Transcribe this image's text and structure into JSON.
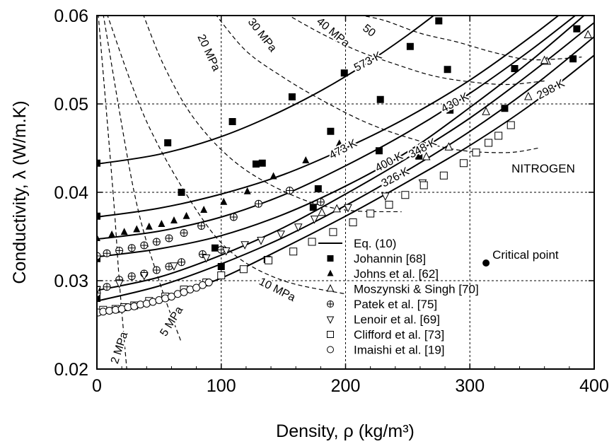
{
  "chart_data": {
    "type": "scatter",
    "xlabel": "Density, ρ  (kg/m³)",
    "ylabel": "Conductivity, λ  (W/m.K)",
    "xlim": [
      0,
      400
    ],
    "ylim": [
      0.02,
      0.06
    ],
    "x_ticks": [
      "0",
      "100",
      "200",
      "300",
      "400"
    ],
    "y_ticks": [
      "0.02",
      "0.03",
      "0.04",
      "0.05",
      "0.06"
    ],
    "grid": "dashed at major ticks",
    "legend_position": "lower-right",
    "substance_label": "NITROGEN",
    "critical_point": {
      "label": "Critical point",
      "x": 313,
      "y": 0.032
    },
    "isotherms": [
      {
        "label": "298 K",
        "x": [
          0,
          50,
          100,
          150,
          200,
          250,
          300,
          350,
          400
        ],
        "y": [
          0.0262,
          0.0278,
          0.0303,
          0.0337,
          0.0373,
          0.0412,
          0.0453,
          0.05,
          0.0555
        ]
      },
      {
        "label": "326 K",
        "x": [
          0,
          50,
          100,
          150,
          200,
          250,
          300,
          350,
          400
        ],
        "y": [
          0.0277,
          0.0294,
          0.0319,
          0.0349,
          0.0385,
          0.0425,
          0.0469,
          0.0519,
          0.0576
        ]
      },
      {
        "label": "348 K",
        "x": [
          0,
          50,
          100,
          150,
          200,
          250,
          300,
          350,
          400
        ],
        "y": [
          0.0289,
          0.0304,
          0.0329,
          0.036,
          0.0398,
          0.0439,
          0.0484,
          0.0536,
          0.0592
        ]
      },
      {
        "label": "400 K",
        "x": [
          0,
          50,
          100,
          150,
          200,
          250,
          300,
          350,
          400
        ],
        "y": [
          0.0327,
          0.0336,
          0.0351,
          0.0375,
          0.0407,
          0.0446,
          0.0496,
          0.055,
          0.061
        ]
      },
      {
        "label": "430 K",
        "x": [
          0,
          50,
          100,
          150,
          200,
          250,
          300,
          350,
          400
        ],
        "y": [
          0.0347,
          0.0356,
          0.0372,
          0.0397,
          0.043,
          0.0468,
          0.0512,
          0.0562,
          0.0617
        ]
      },
      {
        "label": "473 K",
        "x": [
          0,
          50,
          100,
          150,
          200,
          250,
          300,
          350,
          400
        ],
        "y": [
          0.0372,
          0.0382,
          0.0398,
          0.042,
          0.045,
          0.0485,
          0.0527,
          0.0577,
          0.0632
        ]
      },
      {
        "label": "573 K",
        "x": [
          0,
          50,
          100,
          150,
          200,
          250,
          300,
          350,
          400
        ],
        "y": [
          0.0432,
          0.0443,
          0.0463,
          0.0493,
          0.0531,
          0.0578,
          0.0633,
          0.0695,
          0.0765
        ]
      }
    ],
    "isobars": [
      {
        "label": "2 MPa",
        "x": [
          1,
          13,
          18,
          24
        ],
        "y": [
          0.0602,
          0.04,
          0.03,
          0.02
        ]
      },
      {
        "label": "5 MPa",
        "x": [
          5,
          30,
          50,
          68
        ],
        "y": [
          0.0602,
          0.04,
          0.03,
          0.023
        ]
      },
      {
        "label": "10 MPa",
        "x": [
          8,
          40,
          80,
          110,
          150,
          200
        ],
        "y": [
          0.0602,
          0.048,
          0.038,
          0.033,
          0.03,
          0.0285
        ]
      },
      {
        "label": "20 MPa",
        "x": [
          37,
          55,
          80,
          115,
          160,
          200,
          245
        ],
        "y": [
          0.0602,
          0.054,
          0.048,
          0.043,
          0.0395,
          0.038,
          0.0378
        ]
      },
      {
        "label": "30 MPa",
        "x": [
          95,
          120,
          150,
          180,
          215,
          250,
          290,
          330,
          355
        ],
        "y": [
          0.0602,
          0.056,
          0.053,
          0.0505,
          0.048,
          0.0462,
          0.0448,
          0.0445,
          0.045
        ]
      },
      {
        "label": "40 MPa",
        "x": [
          152,
          180,
          210,
          240,
          270,
          300,
          330,
          360
        ],
        "y": [
          0.0602,
          0.058,
          0.056,
          0.0545,
          0.0532,
          0.0525,
          0.0522,
          0.0526
        ]
      },
      {
        "label": "50",
        "x": [
          205,
          230,
          260,
          290,
          320,
          350,
          390
        ],
        "y": [
          0.0602,
          0.0595,
          0.058,
          0.057,
          0.0558,
          0.055,
          0.0553
        ]
      }
    ],
    "isobar_labels": [
      {
        "text": "2 MPa",
        "x": 18,
        "y": 0.0224,
        "angle": -72
      },
      {
        "text": "5 MPa",
        "x": 60,
        "y": 0.0254,
        "angle": -58
      },
      {
        "text": "10 MPa",
        "x": 145,
        "y": 0.029,
        "angle": 27
      },
      {
        "text": "20 MPa",
        "x": 90,
        "y": 0.0558,
        "angle": 65
      },
      {
        "text": "30 MPa",
        "x": 133,
        "y": 0.0578,
        "angle": 52
      },
      {
        "text": "40 MPa",
        "x": 190,
        "y": 0.0581,
        "angle": 40
      },
      {
        "text": "50",
        "x": 219,
        "y": 0.0583,
        "angle": 38
      }
    ],
    "series": [
      {
        "name": "Eq. (10)",
        "marker": "line"
      },
      {
        "name": "Johannin [68]",
        "marker": "filled-square",
        "x": [
          0,
          57,
          109,
          157,
          199,
          252,
          275,
          0,
          68,
          133,
          178,
          228,
          282,
          328,
          0,
          128,
          188,
          227,
          259,
          336,
          386,
          0,
          95,
          174,
          284,
          383,
          0,
          100,
          137
        ],
        "y": [
          0.0433,
          0.0456,
          0.048,
          0.0508,
          0.0535,
          0.0565,
          0.0594,
          0.0373,
          0.04,
          0.0433,
          0.0404,
          0.0505,
          0.0539,
          0.0495,
          0.0325,
          0.0432,
          0.0469,
          0.0447,
          0.0441,
          0.054,
          0.0585,
          0.029,
          0.0337,
          0.0383,
          0.0493,
          0.0551,
          0.028,
          0.0316,
          0.0324
        ]
      },
      {
        "name": "Johns et al. [62]",
        "marker": "filled-triangle",
        "x": [
          0,
          12,
          22,
          32,
          42,
          52,
          62,
          72,
          86,
          102,
          121,
          142,
          168,
          195
        ],
        "y": [
          0.0348,
          0.0352,
          0.0355,
          0.0358,
          0.0361,
          0.0364,
          0.0368,
          0.0373,
          0.038,
          0.0389,
          0.0401,
          0.0418,
          0.0436,
          0.0455
        ]
      },
      {
        "name": "Moszynski & Singh [70]",
        "marker": "open-triangle",
        "x": [
          181,
          193,
          265,
          283,
          313,
          347,
          362,
          395,
          360
        ],
        "y": [
          0.0377,
          0.0381,
          0.044,
          0.0451,
          0.0491,
          0.0508,
          0.0548,
          0.0578,
          0.0549
        ]
      },
      {
        "name": "Patek et al. [75]",
        "marker": "crossed-circle",
        "x": [
          0,
          8,
          18,
          28,
          38,
          48,
          58,
          70,
          84,
          110,
          130,
          155,
          180,
          0,
          8,
          18,
          28,
          38,
          48,
          58,
          68,
          85,
          100
        ],
        "y": [
          0.0328,
          0.0331,
          0.0334,
          0.0337,
          0.034,
          0.0344,
          0.0348,
          0.0354,
          0.0362,
          0.0372,
          0.0387,
          0.0402,
          0.0389,
          0.0286,
          0.0293,
          0.0301,
          0.0305,
          0.0308,
          0.0312,
          0.0316,
          0.0321,
          0.033,
          0.0335
        ]
      },
      {
        "name": "Lenoir et al. [69]",
        "marker": "open-down-triangle",
        "x": [
          0,
          18,
          38,
          62,
          88,
          104,
          119,
          132,
          148,
          162,
          175,
          202,
          232,
          262
        ],
        "y": [
          0.029,
          0.0297,
          0.0306,
          0.0317,
          0.0326,
          0.0334,
          0.0341,
          0.0346,
          0.0353,
          0.0361,
          0.037,
          0.0383,
          0.0396,
          0.0411
        ]
      },
      {
        "name": "Clifford et al. [73]",
        "marker": "open-square",
        "x": [
          5,
          15,
          22,
          30,
          42,
          55,
          70,
          88,
          100,
          118,
          138,
          158,
          173,
          190,
          206,
          220,
          235,
          248,
          263,
          279,
          295,
          305,
          315,
          323,
          333
        ],
        "y": [
          0.0267,
          0.0268,
          0.027,
          0.0272,
          0.0277,
          0.0282,
          0.029,
          0.0298,
          0.0306,
          0.0313,
          0.0323,
          0.0333,
          0.0344,
          0.0355,
          0.0366,
          0.0376,
          0.0386,
          0.0397,
          0.0408,
          0.0419,
          0.0433,
          0.0445,
          0.0456,
          0.0464,
          0.0476
        ]
      },
      {
        "name": "Imaishi et al. [19]",
        "marker": "open-circle",
        "x": [
          1,
          5,
          10,
          15,
          20,
          25,
          30,
          35,
          40,
          45,
          50,
          55,
          60,
          65,
          70,
          75,
          80,
          85,
          90
        ],
        "y": [
          0.0264,
          0.0265,
          0.0266,
          0.0267,
          0.0268,
          0.027,
          0.0271,
          0.0273,
          0.0274,
          0.0276,
          0.0278,
          0.028,
          0.0282,
          0.0285,
          0.0287,
          0.029,
          0.0292,
          0.0295,
          0.0298
        ]
      }
    ]
  }
}
